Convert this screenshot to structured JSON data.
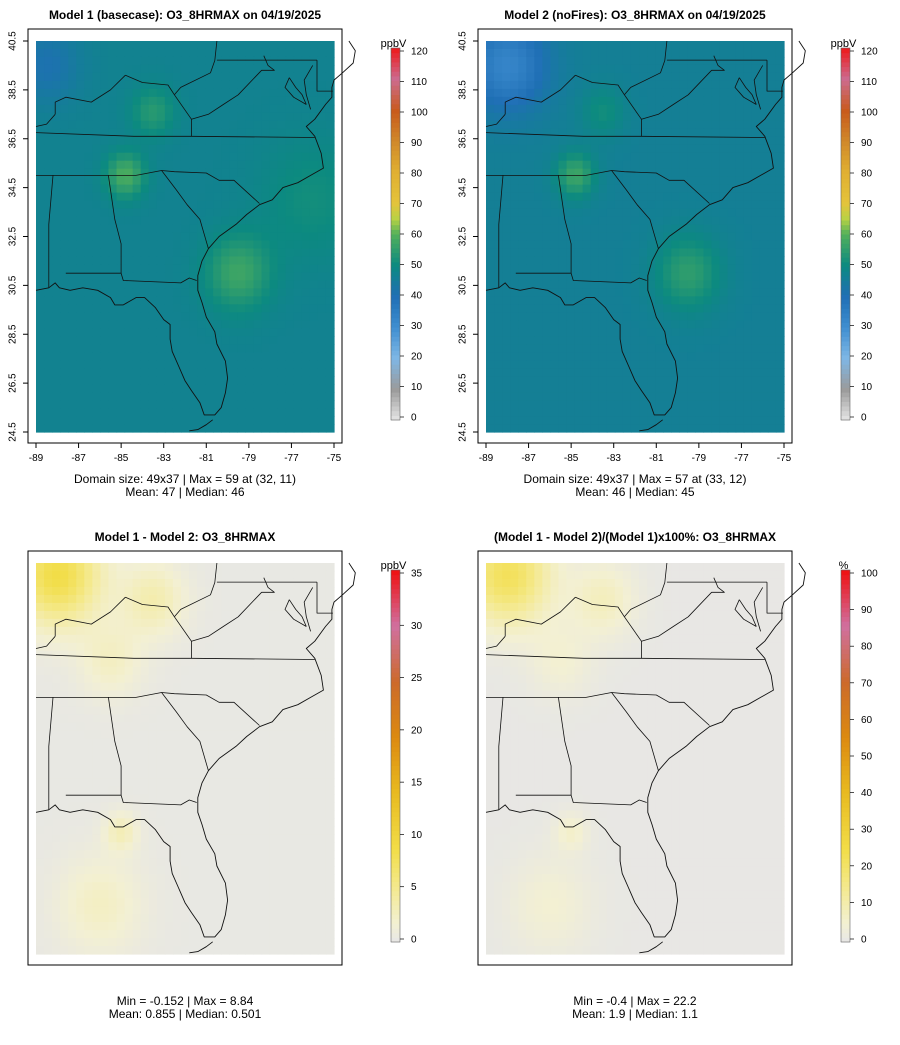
{
  "chart_data": [
    {
      "type": "heatmap",
      "id": "p1",
      "title": "Model 1 (basecase): O3_8HRMAX on 04/19/2025",
      "xlabel": "",
      "ylabel": "",
      "x_ticks": [
        "-89",
        "-87",
        "-85",
        "-83",
        "-81",
        "-79",
        "-77",
        "-75"
      ],
      "y_ticks": [
        "24.5",
        "26.5",
        "28.5",
        "30.5",
        "32.5",
        "34.5",
        "36.5",
        "38.5",
        "40.5"
      ],
      "xlim": [
        -89,
        -75
      ],
      "ylim": [
        24.5,
        40.5
      ],
      "colorbar_unit": "ppbV",
      "colorbar_ticks": [
        "0",
        "10",
        "20",
        "30",
        "40",
        "50",
        "60",
        "70",
        "80",
        "90",
        "100",
        "110",
        "120"
      ],
      "colorbar_range": [
        0,
        120
      ],
      "colormap": "conc",
      "value_range": [
        41,
        59
      ],
      "background_value": 47,
      "field_features": [
        {
          "kind": "hotspot",
          "lon": -84.8,
          "lat": 35.0,
          "value": 59,
          "spread": 0.9
        },
        {
          "kind": "hotspot",
          "lon": -79.5,
          "lat": 31.0,
          "value": 57,
          "spread": 1.5
        },
        {
          "kind": "hotspot",
          "lon": -83.5,
          "lat": 37.6,
          "value": 54,
          "spread": 1.0
        },
        {
          "kind": "hotspot",
          "lon": -76.0,
          "lat": 34.0,
          "value": 51,
          "spread": 2.5
        },
        {
          "kind": "low",
          "lon": -88.5,
          "lat": 39.5,
          "value": 41,
          "spread": 1.5
        }
      ],
      "stats_line1": "Domain size: 49x37 | Max = 59 at (32, 11)",
      "stats_line2": "Mean: 47 |  Median: 46"
    },
    {
      "type": "heatmap",
      "id": "p2",
      "title": "Model 2 (noFires): O3_8HRMAX on 04/19/2025",
      "xlabel": "",
      "ylabel": "",
      "x_ticks": [
        "-89",
        "-87",
        "-85",
        "-83",
        "-81",
        "-79",
        "-77",
        "-75"
      ],
      "y_ticks": [
        "24.5",
        "26.5",
        "28.5",
        "30.5",
        "32.5",
        "34.5",
        "36.5",
        "38.5",
        "40.5"
      ],
      "xlim": [
        -89,
        -75
      ],
      "ylim": [
        24.5,
        40.5
      ],
      "colorbar_unit": "ppbV",
      "colorbar_ticks": [
        "0",
        "10",
        "20",
        "30",
        "40",
        "50",
        "60",
        "70",
        "80",
        "90",
        "100",
        "110",
        "120"
      ],
      "colorbar_range": [
        0,
        120
      ],
      "colormap": "conc",
      "value_range": [
        33,
        57
      ],
      "background_value": 46,
      "field_features": [
        {
          "kind": "hotspot",
          "lon": -84.8,
          "lat": 35.0,
          "value": 57,
          "spread": 0.9
        },
        {
          "kind": "hotspot",
          "lon": -79.5,
          "lat": 31.0,
          "value": 55,
          "spread": 1.5
        },
        {
          "kind": "hotspot",
          "lon": -83.5,
          "lat": 37.6,
          "value": 51,
          "spread": 1.0
        },
        {
          "kind": "low",
          "lon": -88.0,
          "lat": 39.5,
          "value": 33,
          "spread": 1.8
        }
      ],
      "stats_line1": "Domain size: 49x37 | Max = 57 at (33, 12)",
      "stats_line2": "Mean: 46 |  Median: 45"
    },
    {
      "type": "heatmap",
      "id": "p3",
      "title": "Model 1 - Model 2: O3_8HRMAX",
      "xlabel": "",
      "ylabel": "",
      "x_ticks": [],
      "y_ticks": [],
      "colorbar_unit": "ppbV",
      "colorbar_ticks": [
        "0",
        "5",
        "10",
        "15",
        "20",
        "25",
        "30",
        "35"
      ],
      "colorbar_range": [
        0,
        35
      ],
      "colormap": "diff",
      "value_range": [
        -0.152,
        8.84
      ],
      "background_value": 0.3,
      "field_features": [
        {
          "kind": "hotspot",
          "lon": -88.0,
          "lat": 40.0,
          "value": 8.8,
          "spread": 2.0
        },
        {
          "kind": "hotspot",
          "lon": -83.5,
          "lat": 39.0,
          "value": 3.5,
          "spread": 1.5
        },
        {
          "kind": "hotspot",
          "lon": -85.5,
          "lat": 36.5,
          "value": 2.5,
          "spread": 1.5
        },
        {
          "kind": "hotspot",
          "lon": -86.0,
          "lat": 26.5,
          "value": 2.5,
          "spread": 2.0
        },
        {
          "kind": "hotspot",
          "lon": -85.0,
          "lat": 29.5,
          "value": 3.0,
          "spread": 0.8
        }
      ],
      "stats_line1": "Min = -0.152 | Max = 8.84",
      "stats_line2": "Mean: 0.855 |  Median: 0.501"
    },
    {
      "type": "heatmap",
      "id": "p4",
      "title": "(Model 1 - Model 2)/(Model 1)x100%: O3_8HRMAX",
      "xlabel": "",
      "ylabel": "",
      "x_ticks": [],
      "y_ticks": [],
      "colorbar_unit": "%",
      "colorbar_ticks": [
        "0",
        "10",
        "20",
        "30",
        "40",
        "50",
        "60",
        "70",
        "80",
        "90",
        "100"
      ],
      "colorbar_range": [
        0,
        100
      ],
      "colormap": "diff",
      "value_range": [
        -0.4,
        22.2
      ],
      "background_value": 0.6,
      "field_features": [
        {
          "kind": "hotspot",
          "lon": -88.0,
          "lat": 40.0,
          "value": 22.2,
          "spread": 2.0
        },
        {
          "kind": "hotspot",
          "lon": -83.5,
          "lat": 39.0,
          "value": 8.0,
          "spread": 1.5
        },
        {
          "kind": "hotspot",
          "lon": -85.5,
          "lat": 36.5,
          "value": 5.0,
          "spread": 1.5
        },
        {
          "kind": "hotspot",
          "lon": -86.0,
          "lat": 26.5,
          "value": 5.0,
          "spread": 2.0
        },
        {
          "kind": "hotspot",
          "lon": -85.0,
          "lat": 29.5,
          "value": 6.0,
          "spread": 0.8
        }
      ],
      "stats_line1": "Min = -0.4 | Max = 22.2",
      "stats_line2": "Mean: 1.9 |  Median: 1.1"
    }
  ]
}
